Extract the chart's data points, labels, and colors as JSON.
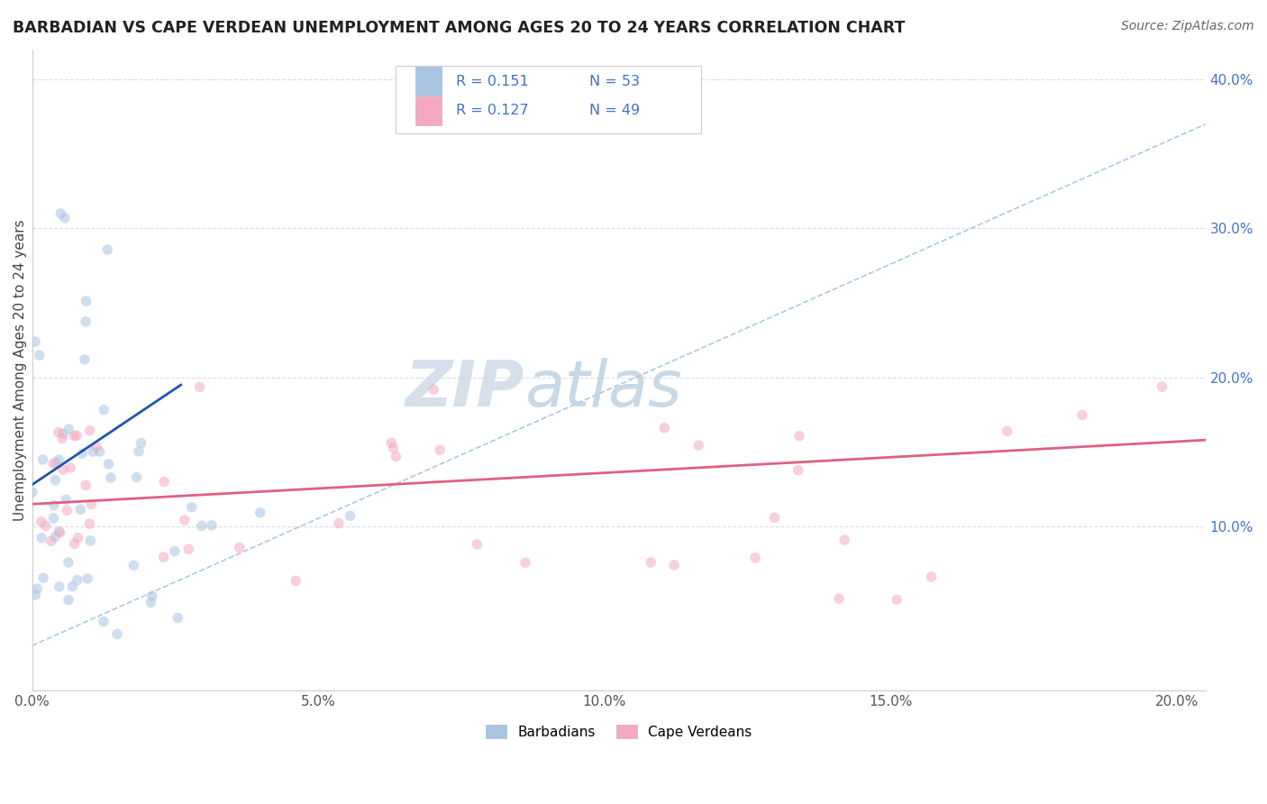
{
  "title": "BARBADIAN VS CAPE VERDEAN UNEMPLOYMENT AMONG AGES 20 TO 24 YEARS CORRELATION CHART",
  "source": "Source: ZipAtlas.com",
  "ylabel": "Unemployment Among Ages 20 to 24 years",
  "xlim": [
    0.0,
    0.205
  ],
  "ylim": [
    -0.01,
    0.42
  ],
  "xticks": [
    0.0,
    0.05,
    0.1,
    0.15,
    0.2
  ],
  "xticklabels": [
    "0.0%",
    "5.0%",
    "10.0%",
    "15.0%",
    "20.0%"
  ],
  "yticks_right": [
    0.1,
    0.2,
    0.3,
    0.4
  ],
  "yticklabels_right": [
    "10.0%",
    "20.0%",
    "30.0%",
    "40.0%"
  ],
  "legend_R1": "R = 0.151",
  "legend_N1": "N = 53",
  "legend_R2": "R = 0.127",
  "legend_N2": "N = 49",
  "color_barbadian": "#a8c4e0",
  "color_capeverdean": "#f4a8c0",
  "color_trend_barbadian": "#2255aa",
  "color_trend_capeverdean": "#e06080",
  "color_trend_dashed": "#a8c8e8",
  "color_title": "#222222",
  "color_source": "#666666",
  "color_tick_right": "#4472c4",
  "background_color": "#ffffff",
  "grid_color": "#d8dde8",
  "grid_yticks": [
    0.1,
    0.2,
    0.3,
    0.4
  ],
  "title_fontsize": 12.5,
  "axis_label_fontsize": 11,
  "tick_fontsize": 11,
  "marker_size": 70,
  "marker_alpha": 0.55,
  "trend_linewidth": 2.0,
  "barb_trend_x": [
    0.0,
    0.026
  ],
  "barb_trend_y": [
    0.128,
    0.195
  ],
  "cape_trend_x": [
    0.0,
    0.205
  ],
  "cape_trend_y": [
    0.115,
    0.158
  ],
  "dash_trend_x": [
    0.0,
    0.205
  ],
  "dash_trend_y": [
    0.02,
    0.37
  ]
}
